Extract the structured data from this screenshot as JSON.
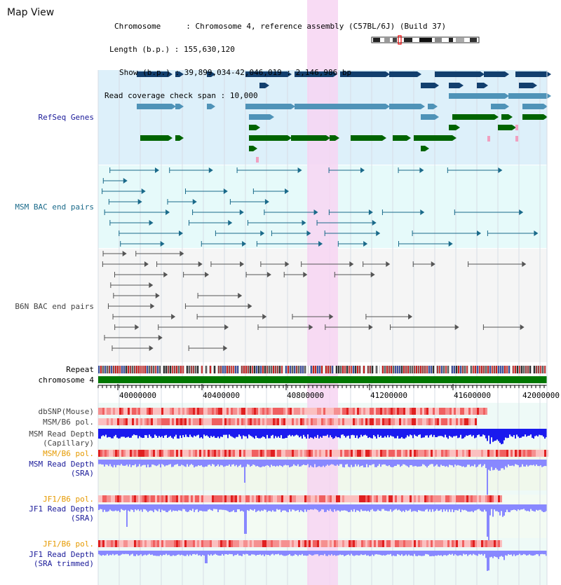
{
  "title": "Map View",
  "info": {
    "chromosome_key": "Chromosome",
    "chromosome_val": "Chromosome 4, reference assembly (C57BL/6J) (Build 37)",
    "length_key": "Length (b.p.)",
    "length_val": "155,630,120",
    "show_key": "Show (b.p.)",
    "show_val": "39,899,034-42,046,019 : 2,146,986 bp",
    "span_key": "Read coverage check span",
    "span_val": "10,000"
  },
  "tracks": {
    "refseq": "RefSeq Genes",
    "msm_bac": "MSM BAC end pairs",
    "b6n_bac": "B6N BAC end pairs",
    "repeat": "Repeat",
    "chromosome": "chromosome 4",
    "dbsnp": "dbSNP(Mouse)",
    "msm_b6_pol": "MSM/B6 pol.",
    "msm_depth_cap_1": "MSM Read Depth",
    "msm_depth_cap_2": "(Capillary)",
    "msm_b6_pol_sra": "MSM/B6 pol.",
    "msm_depth_sra_1": "MSM Read Depth",
    "msm_depth_sra_2": "(SRA)",
    "jf1_b6_pol": "JF1/B6 pol.",
    "jf1_depth_1": "JF1 Read Depth",
    "jf1_depth_2": "(SRA)",
    "jf1_b6_pol_trim": "JF1/B6 pol.",
    "jf1_depth_trim_1": "JF1 Read Depth",
    "jf1_depth_trim_2": "(SRA trimmed)"
  },
  "scale": [
    "40000000",
    "40400000",
    "40800000",
    "41200000",
    "41600000",
    "42000000"
  ],
  "colors": {
    "refseq_bg": "#ddf0fa",
    "msm_bg": "#e6fafa",
    "b6n_bg": "#f5f5f5",
    "highlight": "#f7d5f2",
    "label_navy": "#1a1a99",
    "label_teal": "#1a6a8a",
    "label_gray": "#444444",
    "label_orange": "#e69a00",
    "chromosome_green": "#007700",
    "depth_capillary": "#1a1aee",
    "depth_sra": "#8888ff",
    "depth_spike": "#1a1add"
  }
}
